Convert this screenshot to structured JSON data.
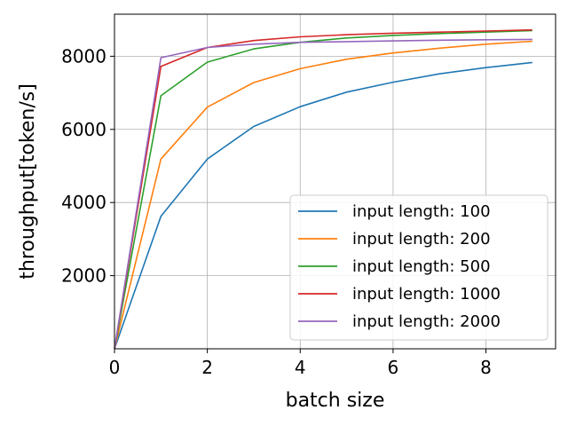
{
  "chart_data": {
    "type": "line",
    "title": "",
    "xlabel": "batch size",
    "ylabel": "throughput[token/s]",
    "xlim": [
      0,
      9.5
    ],
    "ylim": [
      0,
      9150
    ],
    "xticks": [
      0,
      2,
      4,
      6,
      8
    ],
    "yticks": [
      2000,
      4000,
      6000,
      8000
    ],
    "grid": true,
    "legend_position": "lower-right",
    "x": [
      0,
      1,
      2,
      3,
      4,
      5,
      6,
      7,
      8,
      9
    ],
    "series": [
      {
        "name": "input length: 100",
        "color": "#1f77b4",
        "values": [
          0,
          3620,
          5190,
          6080,
          6620,
          7020,
          7290,
          7520,
          7690,
          7830
        ]
      },
      {
        "name": "input length: 200",
        "color": "#ff7f0e",
        "values": [
          0,
          5190,
          6610,
          7280,
          7660,
          7920,
          8090,
          8220,
          8330,
          8410
        ]
      },
      {
        "name": "input length: 500",
        "color": "#2ca02c",
        "values": [
          0,
          6920,
          7840,
          8200,
          8380,
          8500,
          8570,
          8620,
          8660,
          8700
        ]
      },
      {
        "name": "input length: 1000",
        "color": "#d62728",
        "values": [
          0,
          7720,
          8240,
          8430,
          8530,
          8590,
          8630,
          8660,
          8690,
          8720
        ]
      },
      {
        "name": "input length: 2000",
        "color": "#9467bd",
        "values": [
          0,
          7960,
          8240,
          8330,
          8380,
          8400,
          8420,
          8440,
          8450,
          8460
        ]
      }
    ]
  }
}
